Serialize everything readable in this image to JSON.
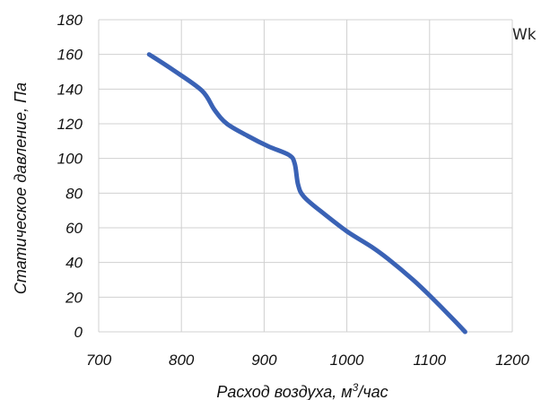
{
  "chart_data": {
    "type": "line",
    "title": "",
    "xlabel": "Расход воздуха, м",
    "xlabel_superscript": "3",
    "xlabel_suffix": "/час",
    "ylabel": "Статическое давление, Па",
    "xlim": [
      700,
      1200
    ],
    "ylim": [
      0,
      180
    ],
    "x_ticks": [
      700,
      800,
      900,
      1000,
      1100,
      1200
    ],
    "y_ticks": [
      0,
      20,
      40,
      60,
      80,
      100,
      120,
      140,
      160,
      180
    ],
    "grid": true,
    "legend": "none",
    "series": [
      {
        "color": "#3a62b5",
        "points": [
          [
            761,
            160
          ],
          [
            790,
            151
          ],
          [
            825,
            139
          ],
          [
            840,
            128
          ],
          [
            855,
            120
          ],
          [
            880,
            113
          ],
          [
            905,
            107
          ],
          [
            930,
            102
          ],
          [
            937,
            97
          ],
          [
            941,
            85
          ],
          [
            948,
            78
          ],
          [
            970,
            69
          ],
          [
            1000,
            58
          ],
          [
            1030,
            49
          ],
          [
            1050,
            42
          ],
          [
            1080,
            30
          ],
          [
            1100,
            21
          ],
          [
            1125,
            9
          ],
          [
            1143,
            0
          ]
        ]
      }
    ]
  },
  "stray_text": "Wk"
}
